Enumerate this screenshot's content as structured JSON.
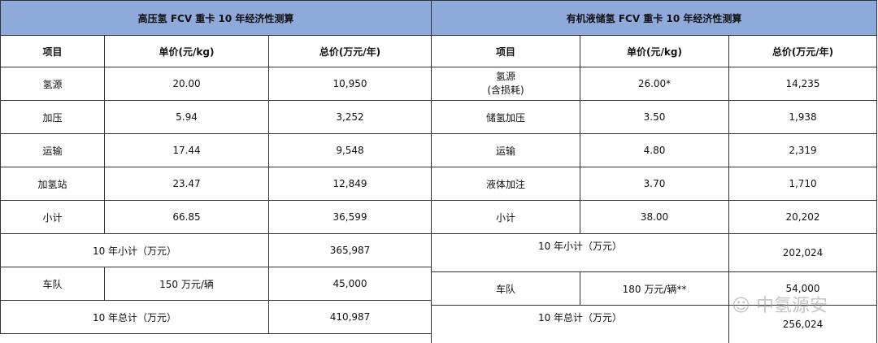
{
  "left": {
    "title": "高压氢 FCV 重卡 10 年经济性测算",
    "headers": [
      "项目",
      "单价(元/kg)",
      "总价(万元/年)"
    ],
    "rows": [
      [
        "氢源",
        "20.00",
        "10,950"
      ],
      [
        "加压",
        "5.94",
        "3,252"
      ],
      [
        "运输",
        "17.44",
        "9,548"
      ],
      [
        "加氢站",
        "23.47",
        "12,849"
      ],
      [
        "小计",
        "66.85",
        "36,599"
      ]
    ],
    "subtotal10": {
      "label": "10 年小计（万元）",
      "value": "365,987"
    },
    "fleet": {
      "label": "车队",
      "unit": "150 万元/辆",
      "value": "45,000"
    },
    "total10": {
      "label": "10 年总计（万元）",
      "value": "410,987"
    }
  },
  "right": {
    "title": "有机液储氢 FCV 重卡 10 年经济性测算",
    "headers": [
      "项目",
      "单价(元/kg)",
      "总价(万元/年)"
    ],
    "rows": [
      [
        "氢源\n(含损耗)",
        "26.00*",
        "14,235"
      ],
      [
        "储氢加压",
        "3.50",
        "1,938"
      ],
      [
        "运输",
        "4.80",
        "2,319"
      ],
      [
        "液体加注",
        "3.70",
        "1,710"
      ],
      [
        "小计",
        "38.00",
        "20,202"
      ]
    ],
    "subtotal10": {
      "label": "10 年小计（万元）",
      "value": "202,024"
    },
    "fleet": {
      "label": "车队",
      "unit": "180 万元/辆**",
      "value": "54,000"
    },
    "total10": {
      "label": "10 年总计（万元）",
      "value": "256,024"
    }
  },
  "watermark": "中氢源安"
}
